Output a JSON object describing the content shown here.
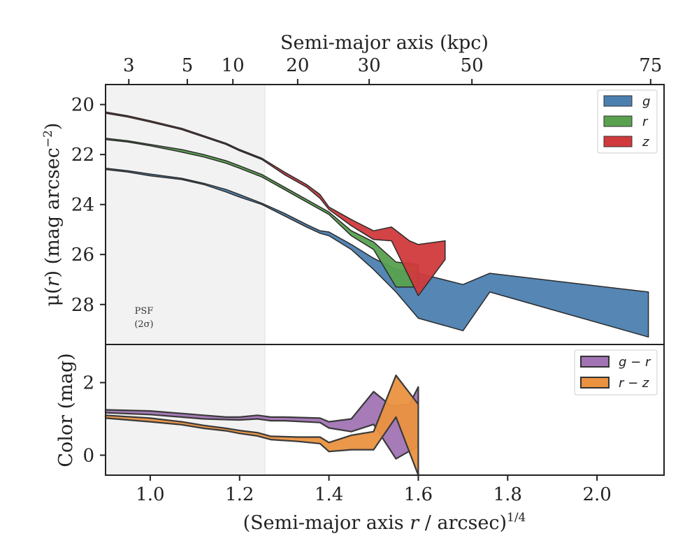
{
  "chart_data": [
    {
      "type": "area",
      "panel": "surface-brightness",
      "ylabel_parts": [
        "μ(",
        "r",
        ") (mag arcsec",
        "−2",
        ")"
      ],
      "xlim": [
        0.9,
        2.15
      ],
      "ylim": [
        29.6,
        19.2
      ],
      "y_inverted": true,
      "yticks": [
        20,
        22,
        24,
        26,
        28
      ],
      "top_axis": {
        "label": "Semi-major axis (kpc)",
        "ticks": [
          {
            "label": "3",
            "x": 0.952
          },
          {
            "label": "5",
            "x": 1.083
          },
          {
            "label": "10",
            "x": 1.185
          },
          {
            "label": "20",
            "x": 1.33
          },
          {
            "label": "30",
            "x": 1.49
          },
          {
            "label": "50",
            "x": 1.72
          },
          {
            "label": "75",
            "x": 2.12
          }
        ]
      },
      "psf_region": {
        "x_end": 1.255,
        "label_line1": "PSF",
        "label_line2": "(2σ)"
      },
      "legend": {
        "position": "top-right"
      },
      "series": [
        {
          "name": "g",
          "color": "#4c7fb0",
          "upper": [
            [
              0.9,
              22.55
            ],
            [
              0.95,
              22.65
            ],
            [
              1.0,
              22.78
            ],
            [
              1.07,
              22.95
            ],
            [
              1.12,
              23.15
            ],
            [
              1.17,
              23.4
            ],
            [
              1.2,
              23.6
            ],
            [
              1.25,
              23.95
            ],
            [
              1.3,
              24.35
            ],
            [
              1.35,
              24.8
            ],
            [
              1.38,
              25.05
            ],
            [
              1.4,
              25.1
            ],
            [
              1.45,
              25.6
            ],
            [
              1.5,
              26.15
            ],
            [
              1.55,
              26.6
            ],
            [
              1.6,
              26.75
            ],
            [
              1.7,
              27.2
            ],
            [
              1.76,
              26.75
            ],
            [
              2.115,
              27.5
            ]
          ],
          "lower": [
            [
              0.9,
              22.6
            ],
            [
              0.95,
              22.7
            ],
            [
              1.0,
              22.85
            ],
            [
              1.07,
              23.0
            ],
            [
              1.12,
              23.2
            ],
            [
              1.17,
              23.5
            ],
            [
              1.2,
              23.7
            ],
            [
              1.25,
              24.0
            ],
            [
              1.3,
              24.45
            ],
            [
              1.35,
              24.9
            ],
            [
              1.38,
              25.15
            ],
            [
              1.4,
              25.25
            ],
            [
              1.45,
              25.8
            ],
            [
              1.5,
              26.6
            ],
            [
              1.55,
              27.5
            ],
            [
              1.6,
              28.55
            ],
            [
              1.7,
              29.05
            ],
            [
              1.76,
              27.5
            ],
            [
              2.115,
              29.3
            ]
          ]
        },
        {
          "name": "r",
          "color": "#59a14f",
          "upper": [
            [
              0.9,
              21.35
            ],
            [
              0.95,
              21.45
            ],
            [
              1.0,
              21.6
            ],
            [
              1.07,
              21.8
            ],
            [
              1.12,
              22.0
            ],
            [
              1.17,
              22.25
            ],
            [
              1.2,
              22.45
            ],
            [
              1.25,
              22.8
            ],
            [
              1.3,
              23.3
            ],
            [
              1.35,
              23.8
            ],
            [
              1.4,
              24.3
            ],
            [
              1.45,
              25.05
            ],
            [
              1.5,
              25.5
            ],
            [
              1.55,
              26.3
            ],
            [
              1.6,
              26.4
            ]
          ],
          "lower": [
            [
              0.9,
              21.4
            ],
            [
              0.95,
              21.5
            ],
            [
              1.0,
              21.65
            ],
            [
              1.07,
              21.9
            ],
            [
              1.12,
              22.1
            ],
            [
              1.17,
              22.35
            ],
            [
              1.2,
              22.55
            ],
            [
              1.25,
              22.9
            ],
            [
              1.3,
              23.4
            ],
            [
              1.35,
              23.9
            ],
            [
              1.4,
              24.4
            ],
            [
              1.45,
              25.25
            ],
            [
              1.5,
              25.8
            ],
            [
              1.55,
              27.3
            ],
            [
              1.6,
              27.3
            ]
          ]
        },
        {
          "name": "z",
          "color": "#d03a3c",
          "upper": [
            [
              0.9,
              20.3
            ],
            [
              0.95,
              20.45
            ],
            [
              1.0,
              20.65
            ],
            [
              1.07,
              20.95
            ],
            [
              1.12,
              21.25
            ],
            [
              1.17,
              21.55
            ],
            [
              1.2,
              21.8
            ],
            [
              1.25,
              22.15
            ],
            [
              1.3,
              22.7
            ],
            [
              1.35,
              23.2
            ],
            [
              1.38,
              23.6
            ],
            [
              1.4,
              24.1
            ],
            [
              1.45,
              24.6
            ],
            [
              1.5,
              25.05
            ],
            [
              1.54,
              24.9
            ],
            [
              1.58,
              25.45
            ],
            [
              1.6,
              25.6
            ],
            [
              1.66,
              25.45
            ]
          ],
          "lower": [
            [
              0.9,
              20.35
            ],
            [
              0.95,
              20.5
            ],
            [
              1.0,
              20.7
            ],
            [
              1.07,
              21.0
            ],
            [
              1.12,
              21.3
            ],
            [
              1.17,
              21.6
            ],
            [
              1.2,
              21.85
            ],
            [
              1.25,
              22.2
            ],
            [
              1.3,
              22.8
            ],
            [
              1.35,
              23.3
            ],
            [
              1.38,
              23.75
            ],
            [
              1.4,
              24.2
            ],
            [
              1.45,
              24.85
            ],
            [
              1.5,
              25.4
            ],
            [
              1.54,
              25.45
            ],
            [
              1.6,
              27.65
            ],
            [
              1.66,
              26.2
            ]
          ]
        }
      ]
    },
    {
      "type": "area",
      "panel": "color",
      "ylabel": "Color (mag)",
      "xlabel_parts": [
        "(Semi-major axis ",
        "r",
        " / arcsec)",
        "1/4"
      ],
      "xlim": [
        0.9,
        2.15
      ],
      "ylim": [
        -0.55,
        3.05
      ],
      "xticks": [
        1.0,
        1.2,
        1.4,
        1.6,
        1.8,
        2.0
      ],
      "xtick_labels": [
        "1.0",
        "1.2",
        "1.4",
        "1.6",
        "1.8",
        "2.0"
      ],
      "yticks": [
        0,
        2
      ],
      "legend": {
        "position": "top-right"
      },
      "series": [
        {
          "name": "g − r",
          "color": "#a274b4",
          "upper": [
            [
              0.9,
              1.25
            ],
            [
              1.0,
              1.22
            ],
            [
              1.07,
              1.15
            ],
            [
              1.12,
              1.1
            ],
            [
              1.17,
              1.05
            ],
            [
              1.2,
              1.05
            ],
            [
              1.24,
              1.1
            ],
            [
              1.27,
              1.05
            ],
            [
              1.3,
              1.05
            ],
            [
              1.38,
              1.02
            ],
            [
              1.4,
              0.92
            ],
            [
              1.45,
              1.0
            ],
            [
              1.5,
              1.75
            ],
            [
              1.54,
              1.35
            ],
            [
              1.58,
              1.4
            ],
            [
              1.6,
              1.88
            ]
          ],
          "lower": [
            [
              0.9,
              1.17
            ],
            [
              1.0,
              1.12
            ],
            [
              1.07,
              1.05
            ],
            [
              1.12,
              1.0
            ],
            [
              1.17,
              0.98
            ],
            [
              1.2,
              0.97
            ],
            [
              1.24,
              1.0
            ],
            [
              1.27,
              0.95
            ],
            [
              1.3,
              0.95
            ],
            [
              1.38,
              0.9
            ],
            [
              1.4,
              0.75
            ],
            [
              1.45,
              0.65
            ],
            [
              1.5,
              0.85
            ],
            [
              1.55,
              -0.1
            ],
            [
              1.6,
              0.25
            ]
          ]
        },
        {
          "name": "r − z",
          "color": "#ea9240",
          "upper": [
            [
              0.9,
              1.1
            ],
            [
              1.0,
              1.02
            ],
            [
              1.07,
              0.92
            ],
            [
              1.12,
              0.82
            ],
            [
              1.17,
              0.74
            ],
            [
              1.2,
              0.68
            ],
            [
              1.24,
              0.62
            ],
            [
              1.27,
              0.52
            ],
            [
              1.33,
              0.5
            ],
            [
              1.38,
              0.5
            ],
            [
              1.4,
              0.35
            ],
            [
              1.45,
              0.55
            ],
            [
              1.5,
              0.65
            ],
            [
              1.55,
              2.2
            ],
            [
              1.6,
              1.4
            ]
          ],
          "lower": [
            [
              0.9,
              1.02
            ],
            [
              1.0,
              0.92
            ],
            [
              1.07,
              0.84
            ],
            [
              1.12,
              0.74
            ],
            [
              1.17,
              0.67
            ],
            [
              1.2,
              0.6
            ],
            [
              1.24,
              0.53
            ],
            [
              1.27,
              0.43
            ],
            [
              1.33,
              0.38
            ],
            [
              1.38,
              0.32
            ],
            [
              1.4,
              0.1
            ],
            [
              1.45,
              0.15
            ],
            [
              1.5,
              0.15
            ],
            [
              1.55,
              1.05
            ],
            [
              1.6,
              -0.55
            ]
          ]
        }
      ]
    }
  ]
}
